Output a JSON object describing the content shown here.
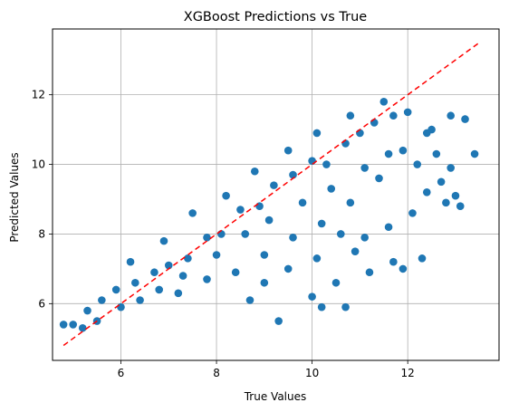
{
  "chart_data": {
    "type": "scatter",
    "title": "XGBoost Predictions vs True",
    "xlabel": "True Values",
    "ylabel": "Predicted Values",
    "xlim": [
      4.57,
      13.91
    ],
    "ylim": [
      4.37,
      13.89
    ],
    "xticks": [
      "6",
      "8",
      "10",
      "12"
    ],
    "yticks": [
      "6",
      "8",
      "10",
      "12"
    ],
    "grid": true,
    "point_color": "#1f77b4",
    "reference_line": {
      "style": "dashed",
      "color": "#ff0000",
      "x": [
        4.8,
        13.5
      ],
      "y": [
        4.8,
        13.5
      ]
    },
    "series": [
      {
        "points": [
          [
            5.0,
            5.4
          ],
          [
            5.3,
            5.8
          ],
          [
            5.6,
            6.1
          ],
          [
            6.0,
            5.9
          ],
          [
            6.3,
            6.6
          ],
          [
            6.7,
            6.9
          ],
          [
            7.0,
            7.1
          ],
          [
            7.4,
            7.3
          ],
          [
            7.8,
            7.9
          ],
          [
            8.1,
            8.0
          ],
          [
            8.5,
            8.7
          ],
          [
            8.9,
            8.8
          ],
          [
            9.2,
            9.4
          ],
          [
            9.6,
            9.7
          ],
          [
            10.0,
            10.1
          ],
          [
            10.3,
            10.0
          ],
          [
            10.7,
            10.6
          ],
          [
            11.0,
            10.9
          ],
          [
            11.3,
            11.2
          ],
          [
            11.7,
            11.4
          ],
          [
            12.0,
            11.5
          ],
          [
            6.2,
            7.2
          ],
          [
            6.9,
            7.8
          ],
          [
            7.5,
            8.6
          ],
          [
            8.2,
            9.1
          ],
          [
            8.8,
            9.8
          ],
          [
            9.5,
            10.4
          ],
          [
            10.1,
            10.9
          ],
          [
            10.8,
            11.4
          ],
          [
            11.5,
            11.8
          ],
          [
            7.2,
            6.3
          ],
          [
            7.8,
            6.7
          ],
          [
            8.4,
            6.9
          ],
          [
            9.0,
            7.4
          ],
          [
            9.6,
            7.9
          ],
          [
            10.2,
            8.3
          ],
          [
            10.8,
            8.9
          ],
          [
            11.4,
            9.6
          ],
          [
            11.9,
            10.4
          ],
          [
            12.4,
            10.9
          ],
          [
            9.3,
            5.5
          ],
          [
            10.0,
            6.2
          ],
          [
            10.2,
            5.9
          ],
          [
            10.7,
            5.9
          ],
          [
            10.5,
            6.6
          ],
          [
            11.9,
            7.0
          ],
          [
            12.3,
            7.3
          ],
          [
            11.7,
            7.2
          ],
          [
            11.2,
            6.9
          ],
          [
            10.9,
            7.5
          ],
          [
            10.1,
            7.3
          ],
          [
            9.5,
            7.0
          ],
          [
            9.0,
            6.6
          ],
          [
            8.7,
            6.1
          ],
          [
            12.8,
            8.9
          ],
          [
            13.1,
            8.8
          ],
          [
            12.7,
            9.5
          ],
          [
            13.0,
            9.1
          ],
          [
            13.4,
            10.3
          ],
          [
            13.2,
            11.3
          ],
          [
            12.9,
            11.4
          ],
          [
            12.5,
            11.0
          ],
          [
            12.6,
            10.3
          ],
          [
            12.9,
            9.9
          ],
          [
            4.8,
            5.4
          ],
          [
            5.2,
            5.3
          ],
          [
            5.5,
            5.5
          ],
          [
            5.9,
            6.4
          ],
          [
            6.4,
            6.1
          ],
          [
            6.8,
            6.4
          ],
          [
            7.3,
            6.8
          ],
          [
            8.0,
            7.4
          ],
          [
            8.6,
            8.0
          ],
          [
            9.1,
            8.4
          ],
          [
            9.8,
            8.9
          ],
          [
            10.4,
            9.3
          ],
          [
            11.1,
            9.9
          ],
          [
            11.6,
            10.3
          ],
          [
            12.2,
            10.0
          ],
          [
            12.4,
            9.2
          ],
          [
            12.1,
            8.6
          ],
          [
            11.6,
            8.2
          ],
          [
            11.1,
            7.9
          ],
          [
            10.6,
            8.0
          ]
        ]
      }
    ]
  }
}
